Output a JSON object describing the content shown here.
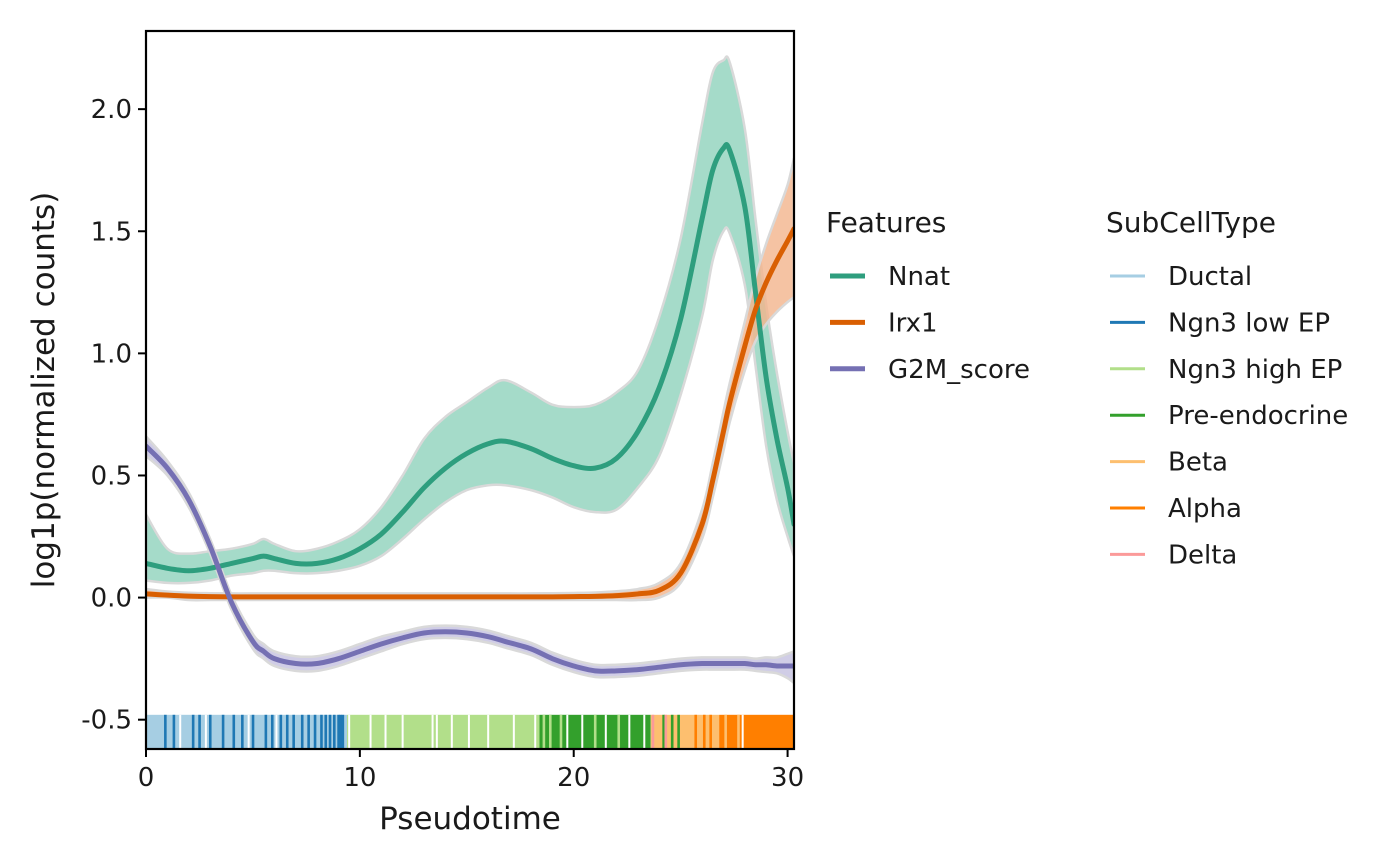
{
  "chart_data": {
    "type": "line",
    "title": "",
    "xlabel": "Pseudotime",
    "ylabel": "log1p(normalized counts)",
    "xlim": [
      0,
      30.3
    ],
    "ylim": [
      -0.62,
      2.32
    ],
    "xticks": [
      0,
      10,
      20,
      30
    ],
    "xtick_labels": [
      "0",
      "10",
      "20",
      "30"
    ],
    "yticks": [
      -0.5,
      0.0,
      0.5,
      1.0,
      1.5,
      2.0
    ],
    "ytick_labels": [
      "-0.5",
      "0.0",
      "0.5",
      "1.0",
      "1.5",
      "2.0"
    ],
    "grid": false,
    "legend_position": "right",
    "x": [
      0,
      1,
      2,
      3,
      4,
      5,
      5.5,
      6,
      7,
      8,
      9,
      10,
      11,
      12,
      13,
      14,
      15,
      16,
      16.8,
      18,
      19,
      20,
      21,
      22,
      23,
      24,
      25,
      26,
      26.5,
      27,
      27.3,
      28,
      28.5,
      29,
      29.5,
      30,
      30.3
    ],
    "series": [
      {
        "name": "Nnat",
        "color": "#2e9e7e",
        "band_color": "#8fd2bc",
        "values": [
          0.14,
          0.12,
          0.11,
          0.12,
          0.14,
          0.16,
          0.17,
          0.16,
          0.14,
          0.14,
          0.16,
          0.2,
          0.26,
          0.35,
          0.45,
          0.53,
          0.59,
          0.63,
          0.64,
          0.61,
          0.57,
          0.54,
          0.53,
          0.57,
          0.68,
          0.86,
          1.14,
          1.55,
          1.75,
          1.84,
          1.83,
          1.6,
          1.25,
          0.9,
          0.65,
          0.45,
          0.3
        ],
        "lower": [
          0.07,
          0.06,
          0.06,
          0.07,
          0.09,
          0.1,
          0.11,
          0.11,
          0.1,
          0.1,
          0.11,
          0.13,
          0.17,
          0.24,
          0.32,
          0.39,
          0.44,
          0.46,
          0.46,
          0.44,
          0.41,
          0.37,
          0.35,
          0.36,
          0.45,
          0.58,
          0.83,
          1.15,
          1.38,
          1.5,
          1.49,
          1.28,
          0.95,
          0.62,
          0.4,
          0.25,
          0.17
        ],
        "upper": [
          0.34,
          0.2,
          0.18,
          0.19,
          0.2,
          0.22,
          0.24,
          0.22,
          0.19,
          0.2,
          0.23,
          0.28,
          0.37,
          0.5,
          0.65,
          0.74,
          0.8,
          0.86,
          0.89,
          0.84,
          0.79,
          0.78,
          0.79,
          0.84,
          0.93,
          1.15,
          1.47,
          1.94,
          2.15,
          2.2,
          2.19,
          1.92,
          1.55,
          1.2,
          0.92,
          0.68,
          0.55
        ]
      },
      {
        "name": "Irx1",
        "color": "#d95f02",
        "band_color": "#f3b48c",
        "values": [
          0.015,
          0.01,
          0.006,
          0.004,
          0.003,
          0.003,
          0.003,
          0.003,
          0.003,
          0.003,
          0.003,
          0.003,
          0.003,
          0.003,
          0.003,
          0.003,
          0.003,
          0.003,
          0.003,
          0.003,
          0.003,
          0.004,
          0.005,
          0.008,
          0.015,
          0.03,
          0.1,
          0.3,
          0.48,
          0.68,
          0.8,
          1.03,
          1.18,
          1.29,
          1.38,
          1.46,
          1.51
        ],
        "lower": [
          0.0,
          0.0,
          -0.01,
          -0.01,
          -0.01,
          -0.01,
          -0.01,
          -0.01,
          -0.01,
          -0.01,
          -0.01,
          -0.01,
          -0.01,
          -0.01,
          -0.01,
          -0.01,
          -0.01,
          -0.01,
          -0.01,
          -0.01,
          -0.01,
          -0.01,
          -0.01,
          -0.01,
          -0.01,
          0.0,
          0.06,
          0.24,
          0.41,
          0.6,
          0.72,
          0.93,
          1.05,
          1.12,
          1.17,
          1.21,
          1.23
        ],
        "upper": [
          0.035,
          0.025,
          0.02,
          0.018,
          0.017,
          0.017,
          0.017,
          0.017,
          0.017,
          0.017,
          0.017,
          0.017,
          0.017,
          0.017,
          0.017,
          0.017,
          0.017,
          0.017,
          0.017,
          0.017,
          0.018,
          0.019,
          0.021,
          0.026,
          0.035,
          0.06,
          0.14,
          0.36,
          0.55,
          0.76,
          0.88,
          1.13,
          1.31,
          1.45,
          1.57,
          1.69,
          1.8
        ]
      },
      {
        "name": "G2M_score",
        "color": "#7570b3",
        "band_color": "#c4c1e0",
        "values": [
          0.62,
          0.53,
          0.4,
          0.21,
          -0.02,
          -0.18,
          -0.22,
          -0.25,
          -0.27,
          -0.27,
          -0.25,
          -0.22,
          -0.19,
          -0.165,
          -0.145,
          -0.14,
          -0.145,
          -0.16,
          -0.18,
          -0.21,
          -0.25,
          -0.28,
          -0.3,
          -0.3,
          -0.295,
          -0.285,
          -0.275,
          -0.27,
          -0.27,
          -0.27,
          -0.27,
          -0.27,
          -0.275,
          -0.275,
          -0.28,
          -0.28,
          -0.28
        ],
        "lower": [
          0.58,
          0.5,
          0.37,
          0.18,
          -0.05,
          -0.21,
          -0.25,
          -0.28,
          -0.3,
          -0.3,
          -0.28,
          -0.25,
          -0.22,
          -0.19,
          -0.17,
          -0.165,
          -0.17,
          -0.185,
          -0.205,
          -0.235,
          -0.275,
          -0.305,
          -0.325,
          -0.325,
          -0.32,
          -0.31,
          -0.3,
          -0.295,
          -0.295,
          -0.295,
          -0.295,
          -0.295,
          -0.3,
          -0.305,
          -0.31,
          -0.33,
          -0.35
        ],
        "upper": [
          0.66,
          0.56,
          0.43,
          0.24,
          0.01,
          -0.15,
          -0.19,
          -0.22,
          -0.24,
          -0.24,
          -0.22,
          -0.19,
          -0.16,
          -0.14,
          -0.12,
          -0.115,
          -0.12,
          -0.135,
          -0.155,
          -0.185,
          -0.225,
          -0.255,
          -0.275,
          -0.275,
          -0.27,
          -0.26,
          -0.25,
          -0.245,
          -0.245,
          -0.245,
          -0.245,
          -0.245,
          -0.25,
          -0.245,
          -0.245,
          -0.23,
          -0.22
        ]
      }
    ],
    "rug": {
      "y_range": [
        -0.62,
        -0.48
      ],
      "segments": [
        {
          "type": "Ductal",
          "from": 0.0,
          "to": 9.4
        },
        {
          "type": "Ngn3 high EP",
          "from": 9.4,
          "to": 18.4
        },
        {
          "type": "Pre-endocrine",
          "from": 18.4,
          "to": 23.6
        },
        {
          "type": "Beta",
          "from": 23.6,
          "to": 26.8
        },
        {
          "type": "Alpha",
          "from": 26.8,
          "to": 30.3
        }
      ],
      "marks": [
        {
          "type": "Ngn3 low EP",
          "x": [
            0.9,
            1.3,
            2.2,
            2.5,
            3.0,
            3.6,
            4.1,
            4.5,
            5.0,
            5.6,
            5.9,
            6.3,
            6.6,
            6.9,
            7.3,
            7.6,
            7.9,
            8.2,
            8.4,
            8.6,
            8.8,
            9.0,
            9.1,
            9.2
          ]
        },
        {
          "type": "Ngn3 high EP",
          "x": [
            18.6,
            18.9,
            19.4,
            21.0,
            22.1
          ]
        },
        {
          "type": "Pre-endocrine",
          "x": [
            24.2,
            24.6,
            24.9
          ]
        },
        {
          "type": "Alpha",
          "x": [
            25.7,
            26.1,
            26.4
          ]
        },
        {
          "type": "Beta",
          "x": [
            27.1,
            27.7
          ]
        },
        {
          "type": "Delta",
          "x": [
            23.7,
            24.3
          ]
        }
      ],
      "gaps": [
        1.6,
        2.8,
        4.8,
        6.1,
        9.5,
        10.5,
        11.2,
        12.0,
        13.4,
        13.6,
        14.3,
        15.1,
        16.0,
        17.2,
        18.2,
        19.7,
        20.4,
        21.5,
        22.6,
        23.3,
        27.9
      ]
    }
  },
  "legend_features": {
    "title": "Features",
    "items": [
      {
        "label": "Nnat",
        "color": "#2e9e7e"
      },
      {
        "label": "Irx1",
        "color": "#d95f02"
      },
      {
        "label": "G2M_score",
        "color": "#7570b3"
      }
    ]
  },
  "legend_subcelltype": {
    "title": "SubCellType",
    "items": [
      {
        "label": "Ductal",
        "color": "#a6cee3"
      },
      {
        "label": "Ngn3 low EP",
        "color": "#1f78b4"
      },
      {
        "label": "Ngn3 high EP",
        "color": "#b2df8a"
      },
      {
        "label": "Pre-endocrine",
        "color": "#33a02c"
      },
      {
        "label": "Beta",
        "color": "#fdbf6f"
      },
      {
        "label": "Alpha",
        "color": "#ff7f00"
      },
      {
        "label": "Delta",
        "color": "#fb9a99"
      }
    ]
  }
}
